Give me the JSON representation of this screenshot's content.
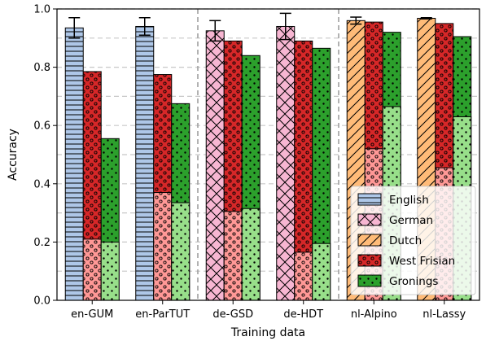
{
  "chart_data": {
    "type": "bar",
    "xlabel": "Training data",
    "ylabel": "Accuracy",
    "ylim": [
      0,
      1.0
    ],
    "yticks": [
      "0.0",
      "0.2",
      "0.4",
      "0.6",
      "0.8",
      "1.0"
    ],
    "categories": [
      "en-GUM",
      "en-ParTUT",
      "de-GSD",
      "de-HDT",
      "nl-Alpino",
      "nl-Lassy"
    ],
    "source_values": [
      0.935,
      0.94,
      0.925,
      0.94,
      0.96,
      0.968
    ],
    "source_errors": [
      0.035,
      0.03,
      0.035,
      0.045,
      0.012,
      0.002
    ],
    "source_languages": [
      "English",
      "English",
      "German",
      "German",
      "Dutch",
      "Dutch"
    ],
    "west_frisian_values": [
      0.785,
      0.775,
      0.89,
      0.89,
      0.955,
      0.95
    ],
    "west_frisian_inner_values": [
      0.21,
      0.37,
      0.305,
      0.165,
      0.52,
      0.455
    ],
    "gronings_values": [
      0.555,
      0.675,
      0.84,
      0.865,
      0.92,
      0.905
    ],
    "gronings_inner_values": [
      0.2,
      0.335,
      0.315,
      0.195,
      0.665,
      0.63
    ],
    "legend": [
      "English",
      "German",
      "Dutch",
      "West Frisian",
      "Gronings"
    ],
    "legend_position": "lower right",
    "grid": "horizontal dashed",
    "colors": {
      "English": "#aec7e8",
      "German": "#f7b6d2",
      "Dutch": "#ffbb78",
      "West Frisian": "#d62728",
      "West Frisian inner": "#ff9896",
      "Gronings": "#2ca02c",
      "Gronings inner": "#98df8a"
    }
  }
}
